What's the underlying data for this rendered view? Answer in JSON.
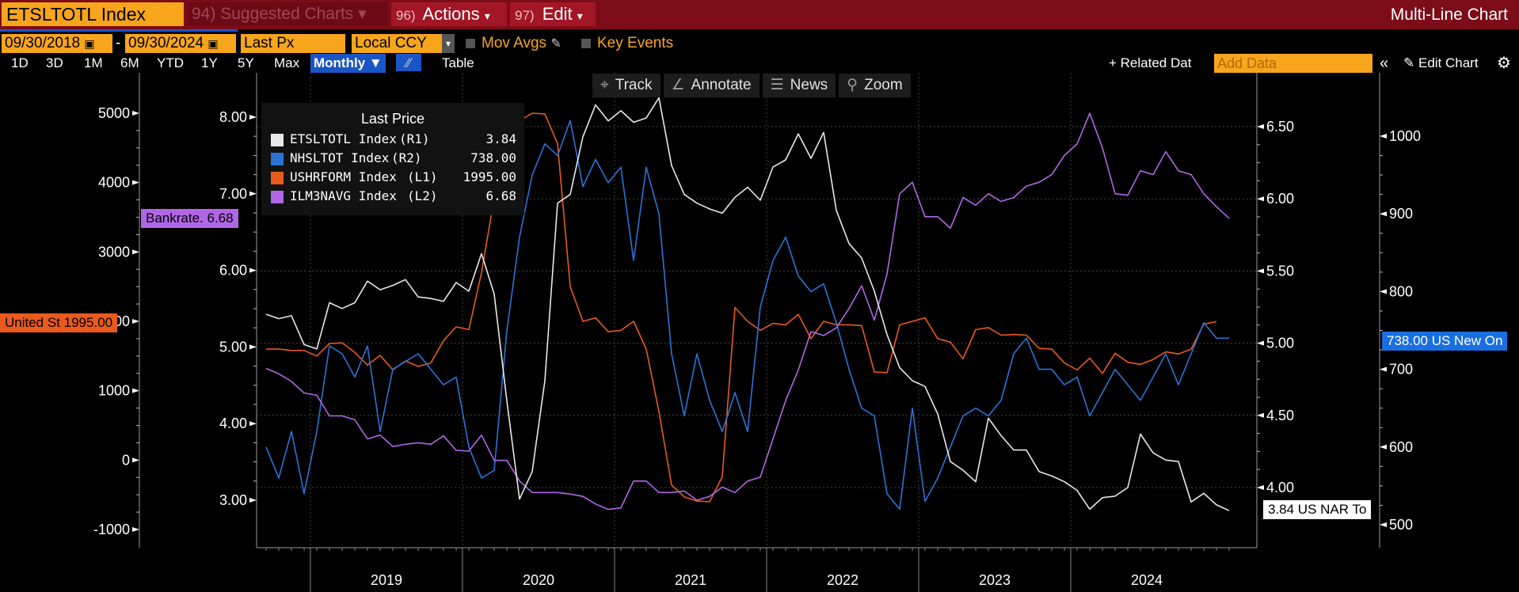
{
  "toolbar": {
    "ticker": "ETSLTOTL Index",
    "suggested": {
      "num": "94)",
      "label": "Suggested Charts",
      "arrow": "▾"
    },
    "actions": {
      "num": "96)",
      "label": "Actions",
      "arrow": "▾"
    },
    "edit": {
      "num": "97)",
      "label": "Edit",
      "arrow": "▾"
    },
    "chart_type": "Multi-Line Chart"
  },
  "controls": {
    "start_date": "09/30/2018",
    "dash": "-",
    "end_date": "09/30/2024",
    "field": "Last Px",
    "currency": "Local CCY",
    "mov_avgs": "Mov Avgs",
    "key_events": "Key Events",
    "ranges": [
      "1D",
      "3D",
      "1M",
      "6M",
      "YTD",
      "1Y",
      "5Y",
      "Max"
    ],
    "frequency": "Monthly ▼",
    "table": "Table",
    "related": "+ Related Dat",
    "add_data_placeholder": "Add Data",
    "edit_chart": "Edit Chart"
  },
  "chart_tools": [
    "Track",
    "Annotate",
    "News",
    "Zoom"
  ],
  "flags": {
    "bankrate": "Bankrate. 6.68",
    "united": "United St 1995.00",
    "nhs": "738.00 US New On",
    "nar": "3.84 US NAR To"
  },
  "chart_data": {
    "type": "line",
    "title": "",
    "x_start": "2018-09",
    "x_end": "2024-09",
    "x_tick_labels": [
      "2019",
      "2020",
      "2021",
      "2022",
      "2023",
      "2024"
    ],
    "legend": {
      "title": "Last Price",
      "placement": "top-left"
    },
    "axes": {
      "L1": {
        "ylim": [
          -1300,
          5600
        ],
        "ticks": [
          -1000,
          0,
          1000,
          2000,
          3000,
          4000,
          5000
        ]
      },
      "L2": {
        "ylim": [
          2.35,
          8.6
        ],
        "ticks": [
          "3.00",
          "4.00",
          "5.00",
          "6.00",
          "7.00",
          "8.00"
        ]
      },
      "R1": {
        "ylim": [
          3.7,
          6.83
        ],
        "ticks": [
          "4.00",
          "4.50",
          "5.00",
          "5.50",
          "6.00",
          "6.50"
        ]
      },
      "R2": {
        "ylim": [
          470,
          1090
        ],
        "ticks": [
          500,
          600,
          700,
          800,
          900,
          1000
        ]
      }
    },
    "grid": true,
    "series": [
      {
        "name": "ETSLTOTL Index",
        "axis": "R1",
        "last": "3.84",
        "axis_label": "(R1)",
        "color": "#e8e8e8",
        "values": [
          5.2,
          5.17,
          5.19,
          4.99,
          4.96,
          5.28,
          5.24,
          5.28,
          5.43,
          5.37,
          5.4,
          5.44,
          5.32,
          5.31,
          5.29,
          5.42,
          5.36,
          5.62,
          5.34,
          4.6,
          3.92,
          4.11,
          4.74,
          5.97,
          6.03,
          6.43,
          6.65,
          6.54,
          6.61,
          6.53,
          6.56,
          6.7,
          6.23,
          6.03,
          5.97,
          5.93,
          5.9,
          6.01,
          6.08,
          5.99,
          6.22,
          6.27,
          6.45,
          6.28,
          6.46,
          5.92,
          5.69,
          5.59,
          5.36,
          5.06,
          4.83,
          4.74,
          4.7,
          4.51,
          4.18,
          4.12,
          4.04,
          4.48,
          4.36,
          4.26,
          4.26,
          4.11,
          4.08,
          4.04,
          3.98,
          3.85,
          3.93,
          3.94,
          4.0,
          4.37,
          4.24,
          4.19,
          4.18,
          3.9,
          3.96,
          3.88,
          3.84
        ]
      },
      {
        "name": "NHSLTOT Index",
        "axis": "R2",
        "last": "738.00",
        "axis_label": "(R2)",
        "color": "#2a74d6",
        "values": [
          600,
          560,
          620,
          540,
          620,
          730,
          720,
          690,
          730,
          620,
          700,
          710,
          720,
          700,
          680,
          690,
          600,
          560,
          570,
          750,
          870,
          950,
          990,
          975,
          1020,
          935,
          970,
          940,
          960,
          840,
          960,
          900,
          720,
          640,
          720,
          660,
          620,
          670,
          620,
          780,
          840,
          870,
          820,
          800,
          810,
          760,
          700,
          650,
          640,
          540,
          520,
          650,
          530,
          560,
          600,
          640,
          650,
          640,
          660,
          720,
          740,
          700,
          700,
          680,
          690,
          640,
          670,
          700,
          680,
          660,
          690,
          720,
          680,
          720,
          760,
          740,
          740
        ]
      },
      {
        "name": "USHRFORM Index",
        "axis": "L1",
        "last": "1995.00",
        "axis_label": "(L1)",
        "color": "#ea5a1c",
        "values": [
          1600,
          1600,
          1580,
          1580,
          1500,
          1680,
          1690,
          1550,
          1370,
          1510,
          1300,
          1430,
          1350,
          1400,
          1720,
          1920,
          1880,
          2700,
          3780,
          4400,
          4890,
          5000,
          4990,
          4560,
          2500,
          2000,
          2050,
          1850,
          1870,
          2000,
          1600,
          700,
          -360,
          -530,
          -590,
          -600,
          -240,
          2200,
          2000,
          1870,
          1970,
          1950,
          2100,
          1750,
          2000,
          1950,
          1950,
          1940,
          1270,
          1260,
          1950,
          2000,
          2050,
          1750,
          1700,
          1460,
          1880,
          1910,
          1800,
          1810,
          1800,
          1610,
          1600,
          1400,
          1300,
          1470,
          1250,
          1540,
          1410,
          1380,
          1450,
          1560,
          1530,
          1600,
          1960,
          1995
        ]
      },
      {
        "name": "ILM3NAVG Index",
        "axis": "L2",
        "last": "6.68",
        "axis_label": "(L2)",
        "color": "#b067e6",
        "values": [
          4.72,
          4.65,
          4.55,
          4.4,
          4.37,
          4.1,
          4.1,
          4.05,
          3.8,
          3.85,
          3.7,
          3.73,
          3.75,
          3.73,
          3.84,
          3.65,
          3.64,
          3.85,
          3.52,
          3.52,
          3.25,
          3.1,
          3.1,
          3.1,
          3.08,
          3.05,
          2.95,
          2.88,
          2.9,
          3.25,
          3.25,
          3.1,
          3.1,
          3.12,
          3.0,
          3.05,
          3.17,
          3.1,
          3.25,
          3.3,
          3.8,
          4.3,
          4.7,
          5.2,
          5.15,
          5.25,
          5.5,
          5.8,
          5.35,
          5.95,
          7.0,
          7.15,
          6.7,
          6.7,
          6.55,
          6.95,
          6.85,
          7.0,
          6.9,
          6.95,
          7.1,
          7.15,
          7.25,
          7.5,
          7.65,
          8.05,
          7.6,
          7.0,
          6.98,
          7.3,
          7.25,
          7.55,
          7.3,
          7.25,
          7.0,
          6.83,
          6.68
        ]
      }
    ]
  }
}
